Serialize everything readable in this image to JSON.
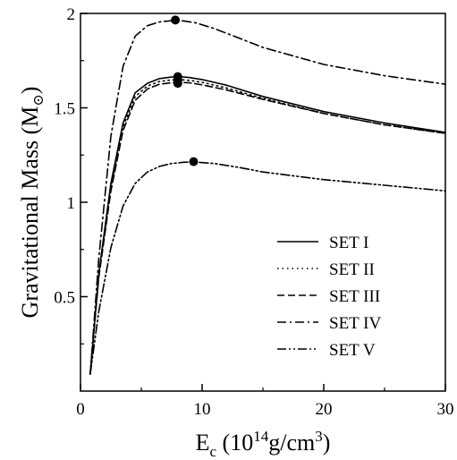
{
  "chart_data": {
    "type": "line",
    "xlim": [
      0,
      30
    ],
    "ylim": [
      0,
      2
    ],
    "x_ticks": [
      {
        "value": 0,
        "label": "0"
      },
      {
        "value": 10,
        "label": "10"
      },
      {
        "value": 20,
        "label": "20"
      },
      {
        "value": 30,
        "label": "30"
      }
    ],
    "y_ticks": [
      {
        "value": 0.5,
        "label": "0.5"
      },
      {
        "value": 1,
        "label": "1"
      },
      {
        "value": 1.5,
        "label": "1.5"
      },
      {
        "value": 2,
        "label": "2"
      }
    ],
    "xlabel": {
      "main": "E",
      "sub": "c",
      "pre": " (10",
      "sup": "14",
      "mid": "g/cm",
      "sup2": "3",
      "post": ")"
    },
    "ylabel": {
      "main": "Gravitational Mass (M",
      "sub": "⊙",
      "post": ")"
    },
    "legend_position": "lower-right",
    "grid": false,
    "series": [
      {
        "name": "SET I",
        "dash": "solid",
        "x": [
          0.8,
          1.5,
          2.5,
          3.5,
          4.5,
          5.5,
          6.5,
          7.5,
          8.2,
          9,
          10,
          12,
          15,
          20,
          25,
          30
        ],
        "y": [
          0.09,
          0.62,
          1.1,
          1.42,
          1.58,
          1.63,
          1.655,
          1.663,
          1.665,
          1.66,
          1.65,
          1.62,
          1.56,
          1.48,
          1.42,
          1.37
        ],
        "max": {
          "x": 8.0,
          "y": 1.665
        }
      },
      {
        "name": "SET II",
        "dash": "dotted",
        "x": [
          0.8,
          1.5,
          2.5,
          3.5,
          4.5,
          5.5,
          6.5,
          7.5,
          8.2,
          9,
          10,
          12,
          15,
          20,
          25,
          30
        ],
        "y": [
          0.09,
          0.61,
          1.08,
          1.4,
          1.56,
          1.615,
          1.64,
          1.648,
          1.65,
          1.645,
          1.635,
          1.605,
          1.55,
          1.47,
          1.41,
          1.365
        ],
        "max": {
          "x": 8.0,
          "y": 1.645
        }
      },
      {
        "name": "SET III",
        "dash": "dashed",
        "x": [
          0.8,
          1.5,
          2.5,
          3.5,
          4.5,
          5.5,
          6.5,
          7.5,
          8.2,
          9,
          10,
          12,
          15,
          20,
          25,
          30
        ],
        "y": [
          0.09,
          0.6,
          1.06,
          1.38,
          1.54,
          1.6,
          1.625,
          1.633,
          1.635,
          1.632,
          1.622,
          1.595,
          1.545,
          1.47,
          1.41,
          1.365
        ],
        "max": {
          "x": 8.0,
          "y": 1.63
        }
      },
      {
        "name": "SET IV",
        "dash": "dash-dot",
        "x": [
          0.8,
          1.5,
          2.5,
          3.5,
          4.5,
          5.5,
          6.5,
          7.5,
          8.5,
          9.5,
          11,
          13,
          15,
          20,
          25,
          30
        ],
        "y": [
          0.09,
          0.7,
          1.35,
          1.72,
          1.88,
          1.935,
          1.955,
          1.962,
          1.96,
          1.95,
          1.92,
          1.87,
          1.82,
          1.73,
          1.67,
          1.625
        ],
        "max": {
          "x": 7.8,
          "y": 1.965
        }
      },
      {
        "name": "SET V",
        "dash": "dash-dot-dot",
        "x": [
          0.8,
          1.5,
          2.5,
          3.5,
          4.5,
          5.5,
          6.5,
          7.5,
          8.5,
          9.5,
          11,
          13,
          15,
          20,
          25,
          30
        ],
        "y": [
          0.09,
          0.42,
          0.76,
          0.98,
          1.1,
          1.16,
          1.19,
          1.205,
          1.212,
          1.213,
          1.205,
          1.185,
          1.16,
          1.12,
          1.09,
          1.06
        ],
        "max": {
          "x": 9.3,
          "y": 1.215
        }
      }
    ]
  }
}
